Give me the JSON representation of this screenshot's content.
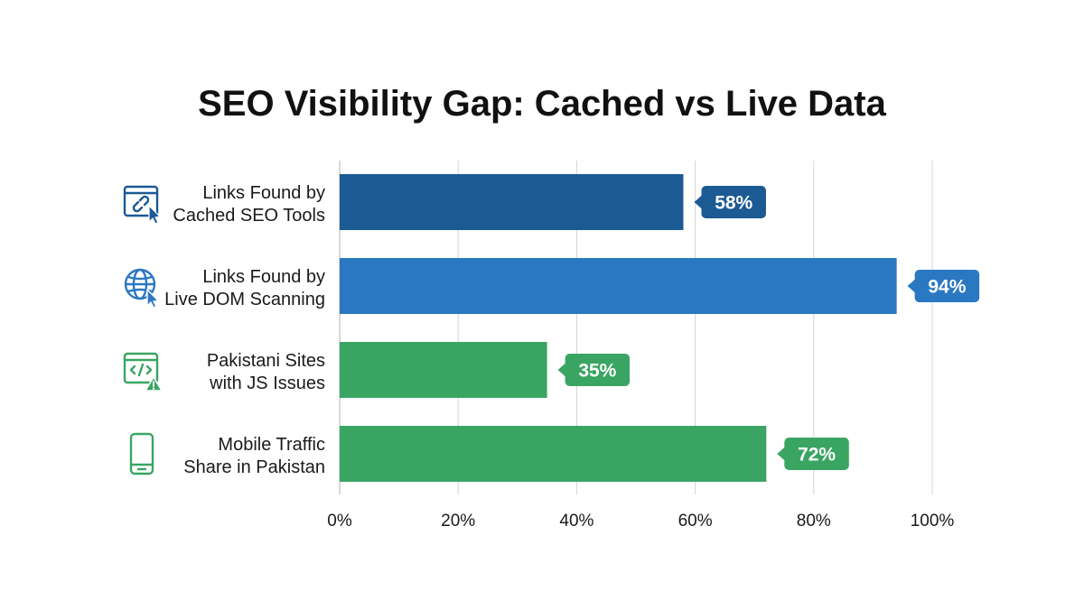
{
  "chart_data": {
    "type": "bar",
    "orientation": "horizontal",
    "title": "SEO Visibility Gap: Cached vs Live Data",
    "xlabel": "",
    "ylabel": "",
    "xlim": [
      0,
      100
    ],
    "x_ticks": [
      "0%",
      "20%",
      "40%",
      "60%",
      "80%",
      "100%"
    ],
    "grid": "vertical",
    "categories": [
      {
        "line1": "Links Found by",
        "line2": "Cached SEO Tools",
        "icon": "cursor-link-icon",
        "color": "#1c5a94"
      },
      {
        "line1": "Links Found by",
        "line2": "Live DOM Scanning",
        "icon": "globe-cursor-icon",
        "color": "#2b78c2"
      },
      {
        "line1": "Pakistani Sites",
        "line2": "with JS Issues",
        "icon": "code-warning-icon",
        "color": "#3aa563"
      },
      {
        "line1": "Mobile Traffic",
        "line2": "Share in Pakistan",
        "icon": "smartphone-icon",
        "color": "#3aa563"
      }
    ],
    "values": [
      58,
      94,
      35,
      72
    ],
    "data_labels": [
      "58%",
      "94%",
      "35%",
      "72%"
    ]
  }
}
